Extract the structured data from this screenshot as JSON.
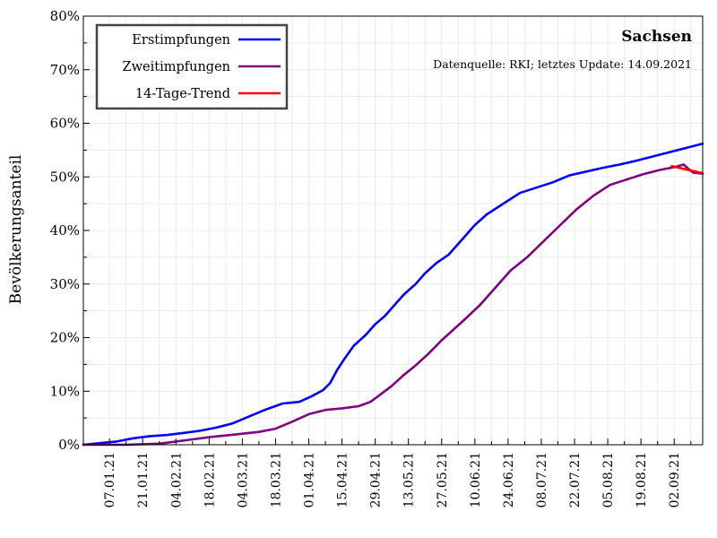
{
  "chart_data": {
    "type": "line",
    "title": "Sachsen",
    "subtitle": "Datenquelle: RKI; letztes Update: 14.09.2021",
    "xlabel": "",
    "ylabel": "Bevölkerungsanteil",
    "ylim": [
      0,
      80
    ],
    "y_unit": "%",
    "yticks": [
      "0%",
      "10%",
      "20%",
      "30%",
      "40%",
      "50%",
      "60%",
      "70%",
      "80%"
    ],
    "xlim": [
      "2020-12-27",
      "2021-09-14"
    ],
    "xtick_dates": [
      "2021-01-07",
      "2021-01-21",
      "2021-02-04",
      "2021-02-18",
      "2021-03-04",
      "2021-03-18",
      "2021-04-01",
      "2021-04-15",
      "2021-04-29",
      "2021-05-13",
      "2021-05-27",
      "2021-06-10",
      "2021-06-24",
      "2021-07-08",
      "2021-07-22",
      "2021-08-05",
      "2021-08-19",
      "2021-09-02"
    ],
    "xtick_labels": [
      "07.01.21",
      "21.01.21",
      "04.02.21",
      "18.02.21",
      "04.03.21",
      "18.03.21",
      "01.04.21",
      "15.04.21",
      "29.04.21",
      "13.05.21",
      "27.05.21",
      "10.06.21",
      "24.06.21",
      "08.07.21",
      "22.07.21",
      "05.08.21",
      "19.08.21",
      "02.09.21"
    ],
    "grid": true,
    "legend_position": "top-left",
    "series": [
      {
        "name": "Erstimpfungen",
        "color": "#0000ff",
        "points": [
          [
            "2020-12-27",
            0
          ],
          [
            "2021-01-03",
            0.3
          ],
          [
            "2021-01-10",
            0.6
          ],
          [
            "2021-01-17",
            1.2
          ],
          [
            "2021-01-24",
            1.6
          ],
          [
            "2021-01-31",
            1.8
          ],
          [
            "2021-02-07",
            2.2
          ],
          [
            "2021-02-14",
            2.6
          ],
          [
            "2021-02-21",
            3.2
          ],
          [
            "2021-02-28",
            4.0
          ],
          [
            "2021-03-07",
            5.3
          ],
          [
            "2021-03-14",
            6.6
          ],
          [
            "2021-03-21",
            7.7
          ],
          [
            "2021-03-28",
            8.0
          ],
          [
            "2021-04-02",
            9.0
          ],
          [
            "2021-04-07",
            10.2
          ],
          [
            "2021-04-10",
            11.5
          ],
          [
            "2021-04-13",
            14.0
          ],
          [
            "2021-04-16",
            16.0
          ],
          [
            "2021-04-20",
            18.5
          ],
          [
            "2021-04-25",
            20.5
          ],
          [
            "2021-04-29",
            22.5
          ],
          [
            "2021-05-03",
            24.0
          ],
          [
            "2021-05-07",
            26.0
          ],
          [
            "2021-05-11",
            28.0
          ],
          [
            "2021-05-16",
            30.0
          ],
          [
            "2021-05-20",
            32.0
          ],
          [
            "2021-05-25",
            34.0
          ],
          [
            "2021-05-30",
            35.5
          ],
          [
            "2021-06-05",
            38.5
          ],
          [
            "2021-06-10",
            41.0
          ],
          [
            "2021-06-15",
            43.0
          ],
          [
            "2021-06-22",
            45.0
          ],
          [
            "2021-06-29",
            47.0
          ],
          [
            "2021-07-06",
            48.0
          ],
          [
            "2021-07-13",
            49.0
          ],
          [
            "2021-07-20",
            50.3
          ],
          [
            "2021-07-27",
            51.0
          ],
          [
            "2021-08-03",
            51.7
          ],
          [
            "2021-08-10",
            52.3
          ],
          [
            "2021-08-17",
            53.0
          ],
          [
            "2021-08-24",
            53.8
          ],
          [
            "2021-08-31",
            54.6
          ],
          [
            "2021-09-07",
            55.4
          ],
          [
            "2021-09-14",
            56.2
          ]
        ]
      },
      {
        "name": "Zweitimpfungen",
        "color": "#800080",
        "points": [
          [
            "2020-12-27",
            0
          ],
          [
            "2021-01-14",
            0
          ],
          [
            "2021-01-28",
            0.2
          ],
          [
            "2021-02-04",
            0.6
          ],
          [
            "2021-02-11",
            1.0
          ],
          [
            "2021-02-18",
            1.4
          ],
          [
            "2021-03-01",
            1.9
          ],
          [
            "2021-03-11",
            2.4
          ],
          [
            "2021-03-18",
            3.0
          ],
          [
            "2021-03-25",
            4.3
          ],
          [
            "2021-04-01",
            5.7
          ],
          [
            "2021-04-08",
            6.5
          ],
          [
            "2021-04-15",
            6.8
          ],
          [
            "2021-04-22",
            7.2
          ],
          [
            "2021-04-27",
            8.0
          ],
          [
            "2021-05-01",
            9.3
          ],
          [
            "2021-05-06",
            11.0
          ],
          [
            "2021-05-11",
            13.0
          ],
          [
            "2021-05-16",
            14.8
          ],
          [
            "2021-05-21",
            16.8
          ],
          [
            "2021-05-27",
            19.5
          ],
          [
            "2021-06-01",
            21.5
          ],
          [
            "2021-06-06",
            23.5
          ],
          [
            "2021-06-12",
            26.0
          ],
          [
            "2021-06-18",
            29.0
          ],
          [
            "2021-06-25",
            32.5
          ],
          [
            "2021-07-02",
            35.0
          ],
          [
            "2021-07-09",
            38.0
          ],
          [
            "2021-07-16",
            41.0
          ],
          [
            "2021-07-23",
            44.0
          ],
          [
            "2021-07-30",
            46.5
          ],
          [
            "2021-08-06",
            48.5
          ],
          [
            "2021-08-13",
            49.5
          ],
          [
            "2021-08-20",
            50.5
          ],
          [
            "2021-08-27",
            51.3
          ],
          [
            "2021-09-02",
            51.8
          ],
          [
            "2021-09-06",
            52.3
          ],
          [
            "2021-09-08",
            51.5
          ],
          [
            "2021-09-10",
            50.8
          ],
          [
            "2021-09-14",
            50.6
          ]
        ]
      },
      {
        "name": "14-Tage-Trend",
        "color": "#ff0000",
        "points": [
          [
            "2021-09-01",
            52.0
          ],
          [
            "2021-09-14",
            50.7
          ]
        ]
      }
    ]
  }
}
